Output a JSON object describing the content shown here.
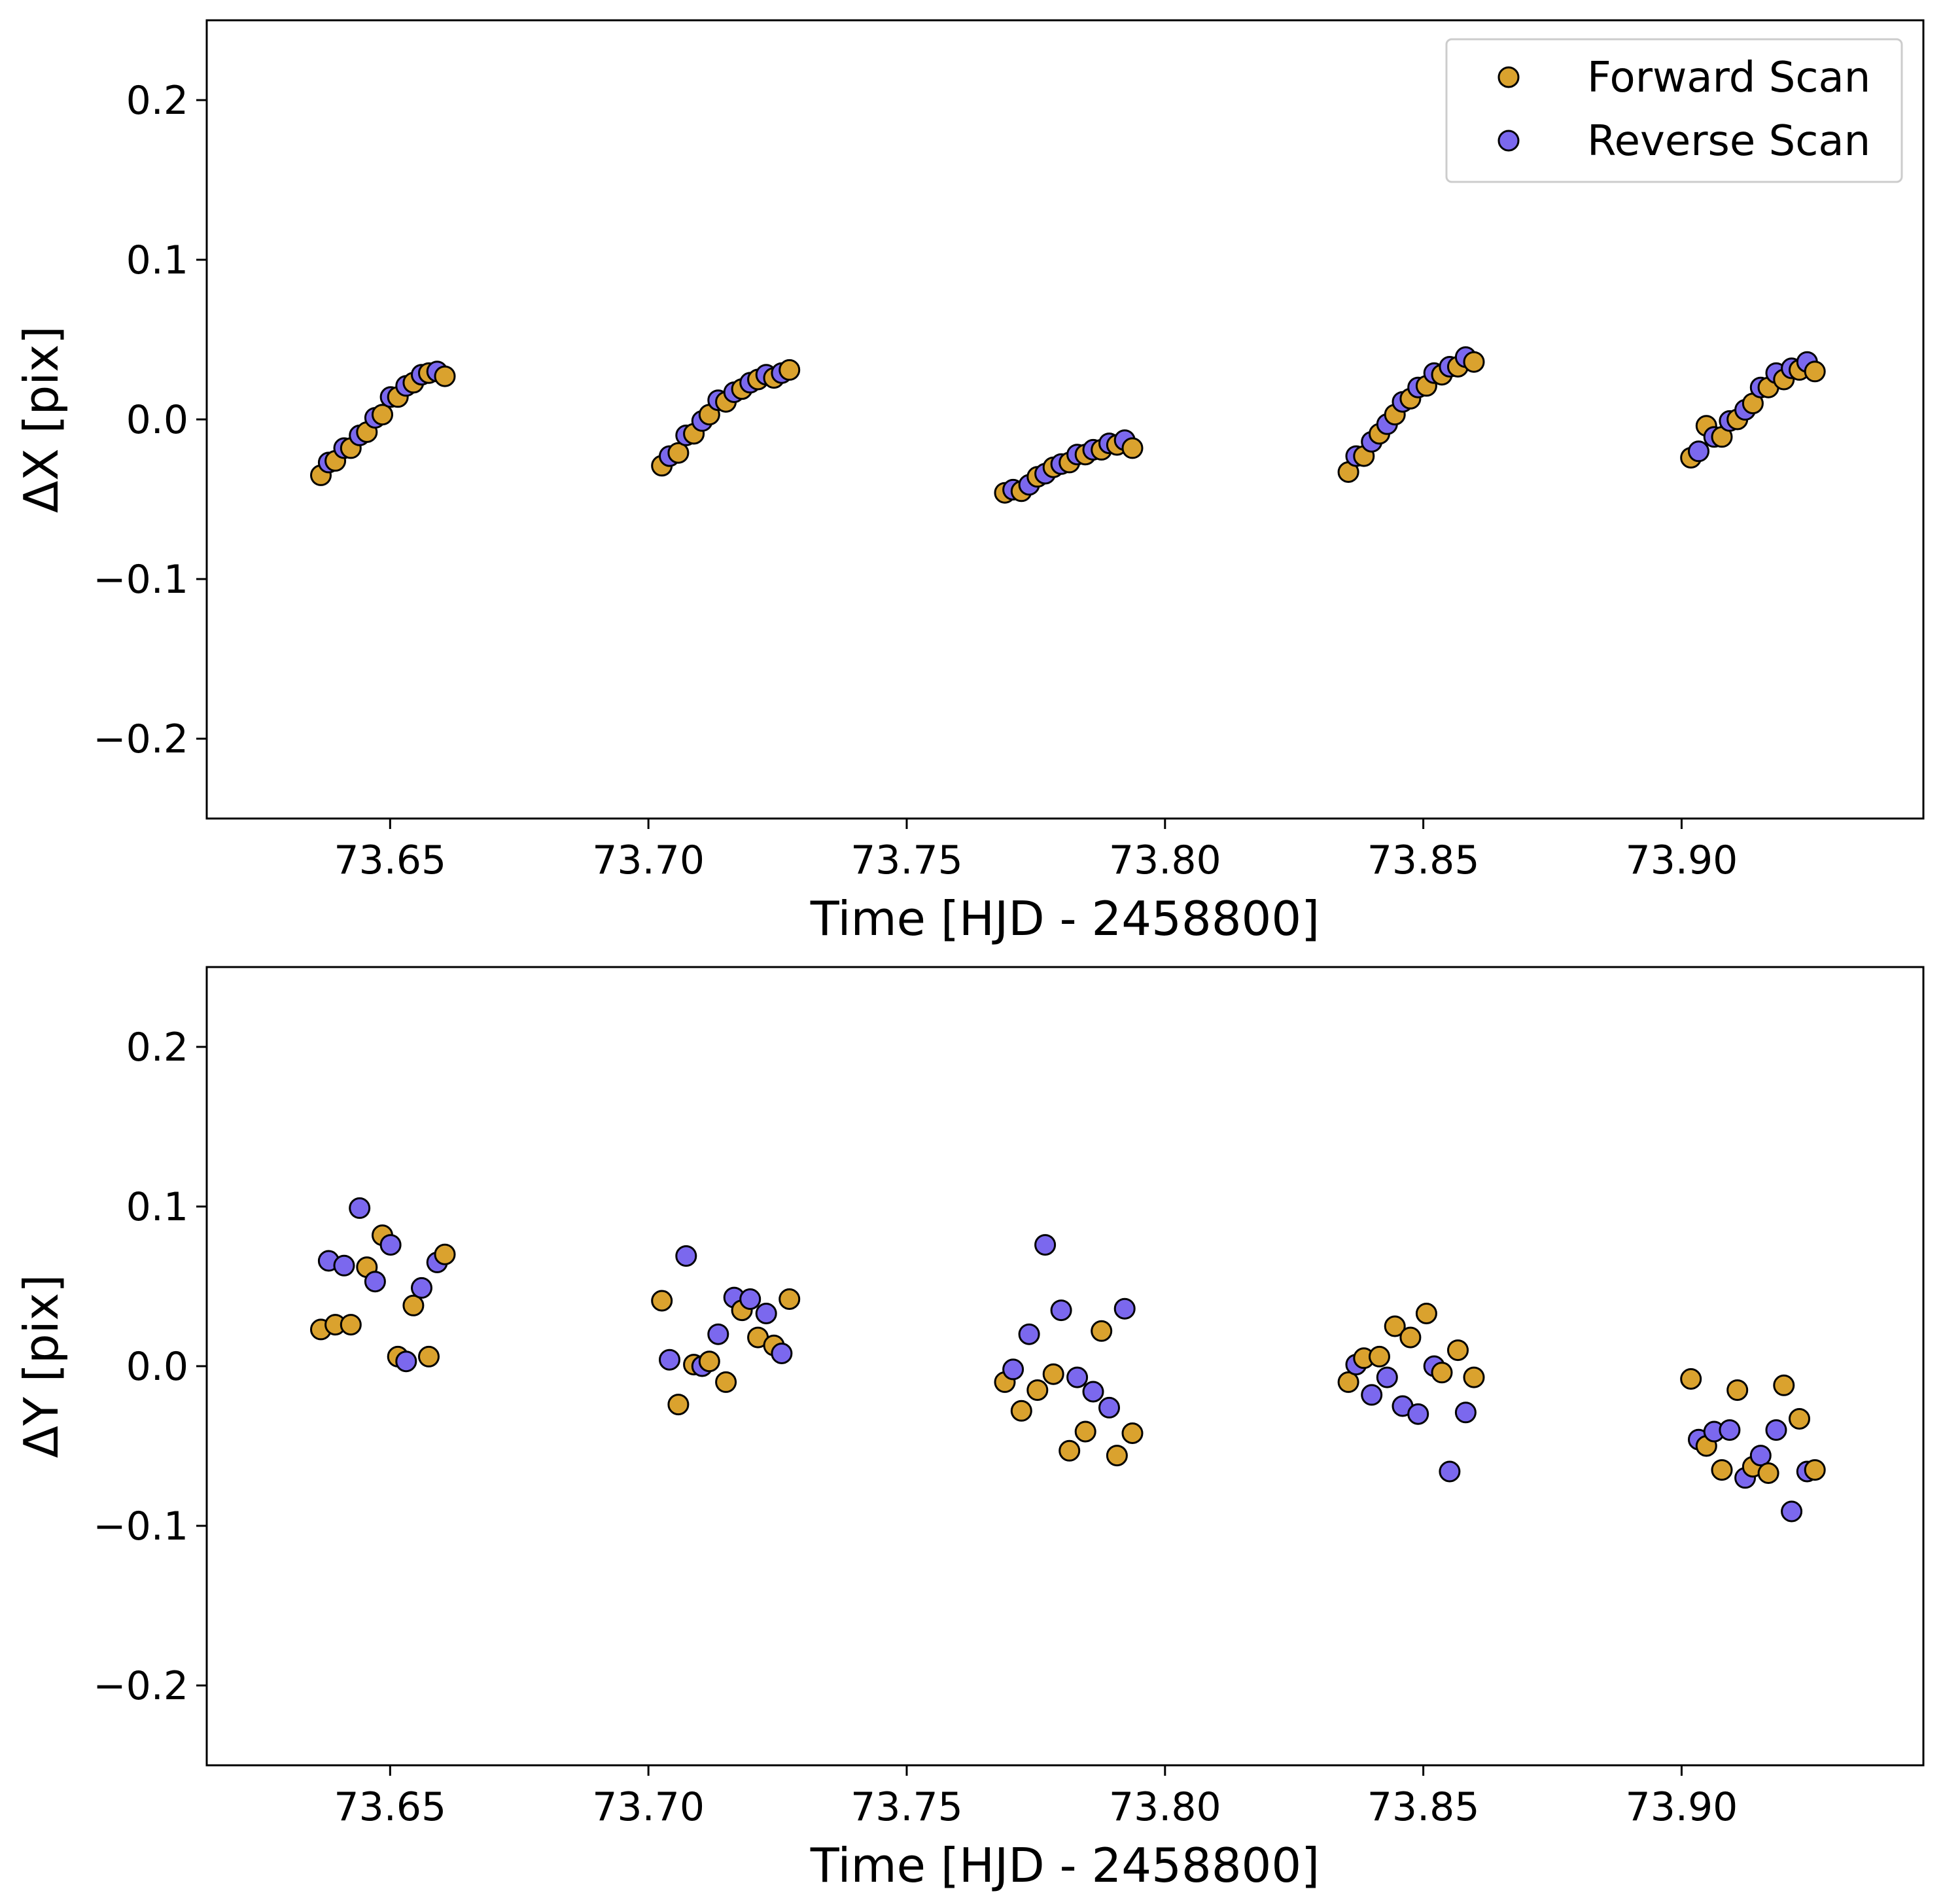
{
  "chart_data": [
    {
      "type": "scatter",
      "panel": "top",
      "xlabel": "Time [HJD - 2458800]",
      "ylabel": "ΔX [pix]",
      "xlim": [
        73.6145,
        73.9468
      ],
      "ylim": [
        -0.25,
        0.25
      ],
      "xticks": [
        73.65,
        73.7,
        73.75,
        73.8,
        73.85,
        73.9
      ],
      "xtick_labels": [
        "73.65",
        "73.70",
        "73.75",
        "73.80",
        "73.85",
        "73.90"
      ],
      "yticks": [
        0.2,
        0.1,
        0.0,
        -0.1,
        -0.2
      ],
      "ytick_labels": [
        "0.2",
        "0.1",
        "0.0",
        "−0.1",
        "−0.2"
      ],
      "legend": {
        "position": "top-right"
      },
      "series": [
        {
          "name": "Forward Scan",
          "color": "#DAA22E",
          "points": [
            [
              73.6366,
              -0.035
            ],
            [
              73.6394,
              -0.026
            ],
            [
              73.6424,
              -0.018
            ],
            [
              73.6455,
              -0.008
            ],
            [
              73.6485,
              0.003
            ],
            [
              73.6515,
              0.014
            ],
            [
              73.6545,
              0.023
            ],
            [
              73.6575,
              0.029
            ],
            [
              73.6606,
              0.027
            ],
            [
              73.7026,
              -0.029
            ],
            [
              73.7058,
              -0.021
            ],
            [
              73.7088,
              -0.009
            ],
            [
              73.7118,
              0.003
            ],
            [
              73.715,
              0.011
            ],
            [
              73.7181,
              0.019
            ],
            [
              73.7212,
              0.025
            ],
            [
              73.7243,
              0.026
            ],
            [
              73.7273,
              0.031
            ],
            [
              73.769,
              -0.046
            ],
            [
              73.7722,
              -0.045
            ],
            [
              73.7753,
              -0.036
            ],
            [
              73.7784,
              -0.03
            ],
            [
              73.7815,
              -0.027
            ],
            [
              73.7846,
              -0.022
            ],
            [
              73.7877,
              -0.019
            ],
            [
              73.7907,
              -0.016
            ],
            [
              73.7937,
              -0.018
            ],
            [
              73.8355,
              -0.033
            ],
            [
              73.8385,
              -0.023
            ],
            [
              73.8415,
              -0.009
            ],
            [
              73.8445,
              0.003
            ],
            [
              73.8475,
              0.013
            ],
            [
              73.8506,
              0.021
            ],
            [
              73.8536,
              0.028
            ],
            [
              73.8567,
              0.033
            ],
            [
              73.8598,
              0.036
            ],
            [
              73.9018,
              -0.024
            ],
            [
              73.9048,
              -0.004
            ],
            [
              73.9078,
              -0.011
            ],
            [
              73.9108,
              0.0
            ],
            [
              73.9138,
              0.01
            ],
            [
              73.9168,
              0.02
            ],
            [
              73.9198,
              0.025
            ],
            [
              73.9228,
              0.031
            ],
            [
              73.9258,
              0.03
            ]
          ]
        },
        {
          "name": "Reverse Scan",
          "color": "#7B68EE",
          "points": [
            [
              73.6381,
              -0.027
            ],
            [
              73.6411,
              -0.018
            ],
            [
              73.6441,
              -0.01
            ],
            [
              73.6471,
              0.001
            ],
            [
              73.6501,
              0.014
            ],
            [
              73.6531,
              0.021
            ],
            [
              73.6561,
              0.028
            ],
            [
              73.6591,
              0.03
            ],
            [
              73.7041,
              -0.023
            ],
            [
              73.7073,
              -0.01
            ],
            [
              73.7104,
              -0.001
            ],
            [
              73.7135,
              0.012
            ],
            [
              73.7166,
              0.017
            ],
            [
              73.7197,
              0.023
            ],
            [
              73.7228,
              0.028
            ],
            [
              73.7258,
              0.029
            ],
            [
              73.7706,
              -0.044
            ],
            [
              73.7737,
              -0.041
            ],
            [
              73.7768,
              -0.034
            ],
            [
              73.7799,
              -0.028
            ],
            [
              73.783,
              -0.022
            ],
            [
              73.7861,
              -0.019
            ],
            [
              73.7892,
              -0.015
            ],
            [
              73.7922,
              -0.013
            ],
            [
              73.837,
              -0.023
            ],
            [
              73.84,
              -0.014
            ],
            [
              73.843,
              -0.003
            ],
            [
              73.846,
              0.011
            ],
            [
              73.849,
              0.02
            ],
            [
              73.8521,
              0.029
            ],
            [
              73.8551,
              0.033
            ],
            [
              73.8582,
              0.039
            ],
            [
              73.9033,
              -0.02
            ],
            [
              73.9063,
              -0.011
            ],
            [
              73.9093,
              -0.001
            ],
            [
              73.9123,
              0.006
            ],
            [
              73.9153,
              0.02
            ],
            [
              73.9183,
              0.029
            ],
            [
              73.9213,
              0.032
            ],
            [
              73.9243,
              0.036
            ]
          ]
        }
      ]
    },
    {
      "type": "scatter",
      "panel": "bottom",
      "xlabel": "Time [HJD - 2458800]",
      "ylabel": "ΔY [pix]",
      "xlim": [
        73.6145,
        73.9468
      ],
      "ylim": [
        -0.25,
        0.25
      ],
      "xticks": [
        73.65,
        73.7,
        73.75,
        73.8,
        73.85,
        73.9
      ],
      "xtick_labels": [
        "73.65",
        "73.70",
        "73.75",
        "73.80",
        "73.85",
        "73.90"
      ],
      "yticks": [
        0.2,
        0.1,
        0.0,
        -0.1,
        -0.2
      ],
      "ytick_labels": [
        "0.2",
        "0.1",
        "0.0",
        "−0.1",
        "−0.2"
      ],
      "series": [
        {
          "name": "Forward Scan",
          "color": "#DAA22E",
          "points": [
            [
              73.6366,
              0.023
            ],
            [
              73.6394,
              0.026
            ],
            [
              73.6424,
              0.026
            ],
            [
              73.6455,
              0.062
            ],
            [
              73.6485,
              0.082
            ],
            [
              73.6515,
              0.006
            ],
            [
              73.6545,
              0.038
            ],
            [
              73.6575,
              0.006
            ],
            [
              73.6606,
              0.07
            ],
            [
              73.7026,
              0.041
            ],
            [
              73.7058,
              -0.024
            ],
            [
              73.7088,
              0.001
            ],
            [
              73.7118,
              0.003
            ],
            [
              73.715,
              -0.01
            ],
            [
              73.7181,
              0.035
            ],
            [
              73.7212,
              0.018
            ],
            [
              73.7243,
              0.013
            ],
            [
              73.7273,
              0.042
            ],
            [
              73.769,
              -0.01
            ],
            [
              73.7722,
              -0.028
            ],
            [
              73.7753,
              -0.015
            ],
            [
              73.7784,
              -0.005
            ],
            [
              73.7815,
              -0.053
            ],
            [
              73.7846,
              -0.041
            ],
            [
              73.7877,
              0.022
            ],
            [
              73.7907,
              -0.056
            ],
            [
              73.7937,
              -0.042
            ],
            [
              73.8355,
              -0.01
            ],
            [
              73.8385,
              0.005
            ],
            [
              73.8415,
              0.006
            ],
            [
              73.8445,
              0.025
            ],
            [
              73.8475,
              0.018
            ],
            [
              73.8506,
              0.033
            ],
            [
              73.8536,
              -0.004
            ],
            [
              73.8567,
              0.01
            ],
            [
              73.8598,
              -0.007
            ],
            [
              73.9018,
              -0.008
            ],
            [
              73.9048,
              -0.05
            ],
            [
              73.9078,
              -0.065
            ],
            [
              73.9108,
              -0.015
            ],
            [
              73.9138,
              -0.063
            ],
            [
              73.9168,
              -0.067
            ],
            [
              73.9198,
              -0.012
            ],
            [
              73.9228,
              -0.033
            ],
            [
              73.9258,
              -0.065
            ]
          ]
        },
        {
          "name": "Reverse Scan",
          "color": "#7B68EE",
          "points": [
            [
              73.6381,
              0.066
            ],
            [
              73.6411,
              0.063
            ],
            [
              73.6441,
              0.099
            ],
            [
              73.6471,
              0.053
            ],
            [
              73.6501,
              0.076
            ],
            [
              73.6531,
              0.003
            ],
            [
              73.6561,
              0.049
            ],
            [
              73.6591,
              0.065
            ],
            [
              73.7041,
              0.004
            ],
            [
              73.7073,
              0.069
            ],
            [
              73.7104,
              0.0
            ],
            [
              73.7135,
              0.02
            ],
            [
              73.7166,
              0.043
            ],
            [
              73.7197,
              0.042
            ],
            [
              73.7228,
              0.033
            ],
            [
              73.7258,
              0.008
            ],
            [
              73.7706,
              -0.002
            ],
            [
              73.7737,
              0.02
            ],
            [
              73.7768,
              0.076
            ],
            [
              73.7799,
              0.035
            ],
            [
              73.783,
              -0.007
            ],
            [
              73.7861,
              -0.016
            ],
            [
              73.7892,
              -0.026
            ],
            [
              73.7922,
              0.036
            ],
            [
              73.837,
              0.001
            ],
            [
              73.84,
              -0.018
            ],
            [
              73.843,
              -0.007
            ],
            [
              73.846,
              -0.025
            ],
            [
              73.849,
              -0.03
            ],
            [
              73.8521,
              0.0
            ],
            [
              73.8551,
              -0.066
            ],
            [
              73.8582,
              -0.029
            ],
            [
              73.9033,
              -0.046
            ],
            [
              73.9063,
              -0.041
            ],
            [
              73.9093,
              -0.04
            ],
            [
              73.9123,
              -0.07
            ],
            [
              73.9153,
              -0.056
            ],
            [
              73.9183,
              -0.04
            ],
            [
              73.9213,
              -0.091
            ],
            [
              73.9243,
              -0.066
            ]
          ]
        }
      ]
    }
  ]
}
